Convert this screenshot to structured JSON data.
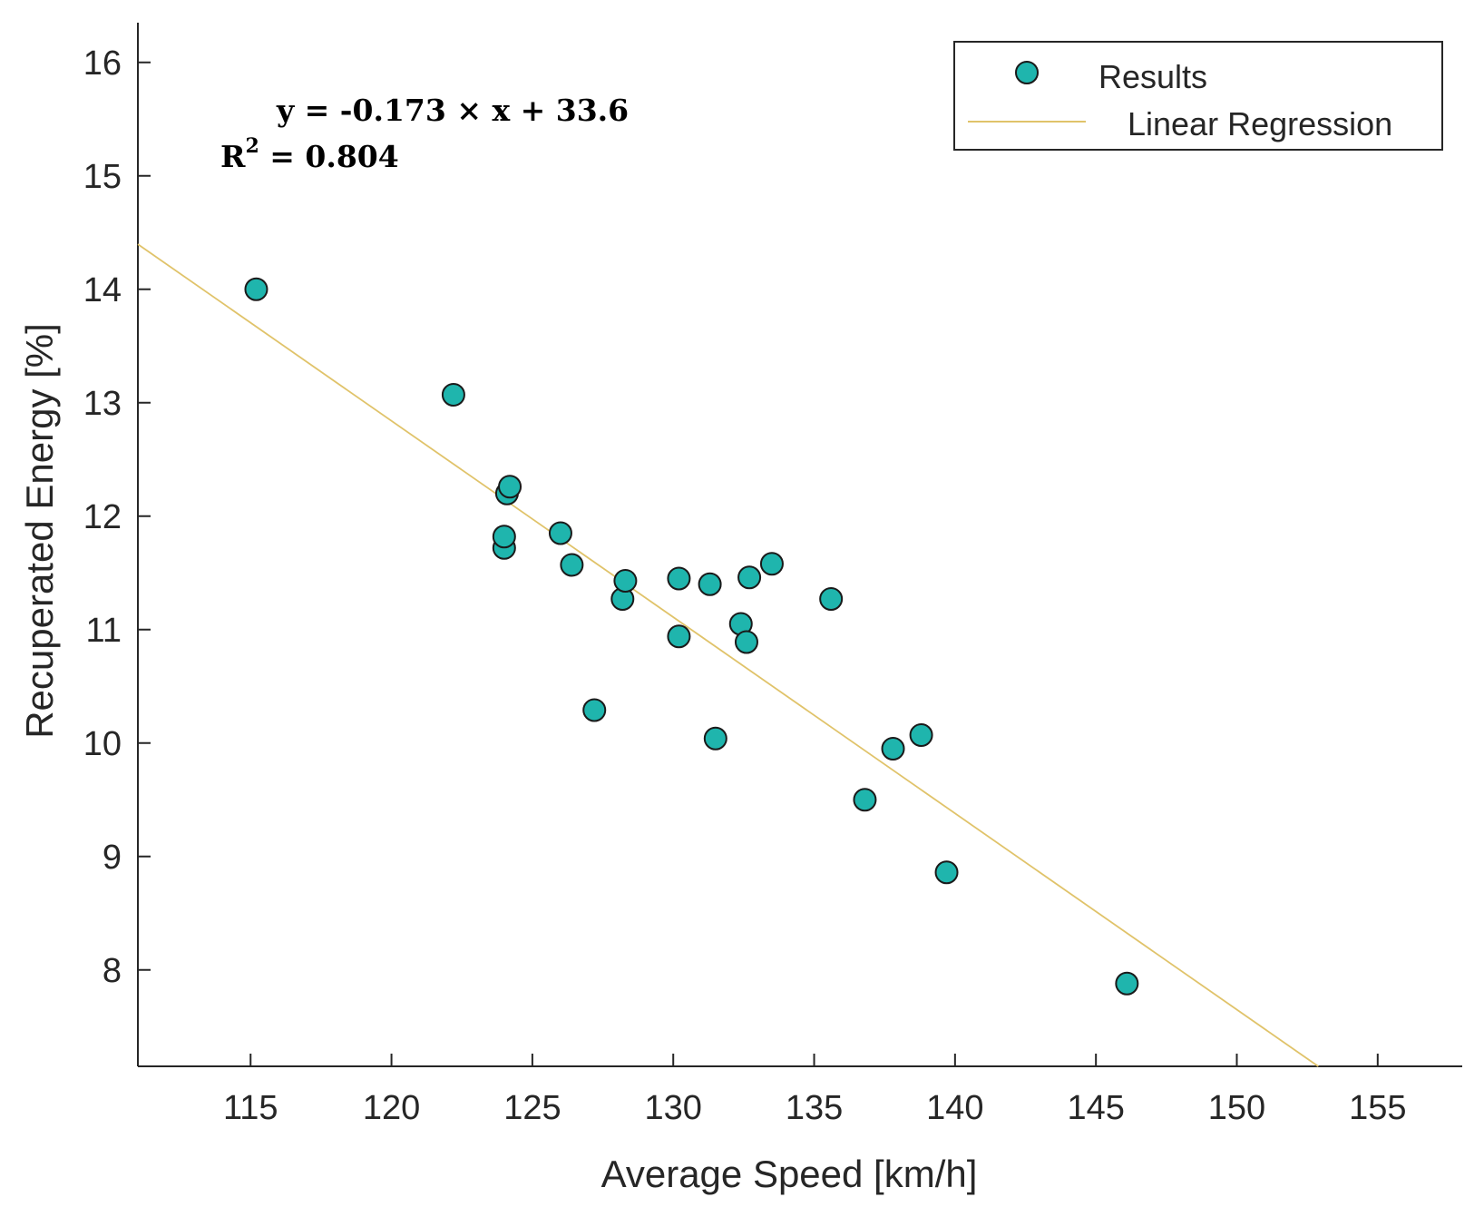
{
  "chart_data": {
    "type": "scatter",
    "title": "",
    "xlabel": "Average Speed [km/h]",
    "ylabel": "Recuperated Energy [%]",
    "xlim": [
      111,
      158
    ],
    "ylim": [
      7.15,
      16.35
    ],
    "xticks": [
      115,
      120,
      125,
      130,
      135,
      140,
      145,
      150,
      155
    ],
    "yticks": [
      8,
      9,
      10,
      11,
      12,
      13,
      14,
      15,
      16
    ],
    "grid": false,
    "legend_position": "top-right",
    "series": [
      {
        "name": "Results",
        "kind": "scatter",
        "color": "#1fb5ad",
        "points": [
          [
            115.2,
            14.0
          ],
          [
            122.2,
            13.07
          ],
          [
            124.0,
            11.72
          ],
          [
            124.0,
            11.82
          ],
          [
            124.1,
            12.2
          ],
          [
            124.2,
            12.26
          ],
          [
            126.0,
            11.85
          ],
          [
            126.4,
            11.57
          ],
          [
            127.2,
            10.29
          ],
          [
            128.2,
            11.27
          ],
          [
            128.3,
            11.43
          ],
          [
            130.2,
            11.45
          ],
          [
            130.2,
            10.94
          ],
          [
            131.3,
            11.4
          ],
          [
            131.5,
            10.04
          ],
          [
            132.4,
            11.05
          ],
          [
            132.6,
            10.89
          ],
          [
            132.7,
            11.46
          ],
          [
            133.5,
            11.58
          ],
          [
            135.6,
            11.27
          ],
          [
            136.8,
            9.5
          ],
          [
            137.8,
            9.95
          ],
          [
            138.8,
            10.07
          ],
          [
            139.7,
            8.86
          ],
          [
            146.1,
            7.88
          ]
        ]
      },
      {
        "name": "Linear Regression",
        "kind": "line",
        "color": "#e0c36a",
        "slope": -0.173,
        "intercept": 33.6
      }
    ],
    "annotations": {
      "equation": "y = -0.173 × x + 33.6",
      "r2_prefix": "R",
      "r2_sup": "2",
      "r2_value": " = 0.804"
    }
  }
}
